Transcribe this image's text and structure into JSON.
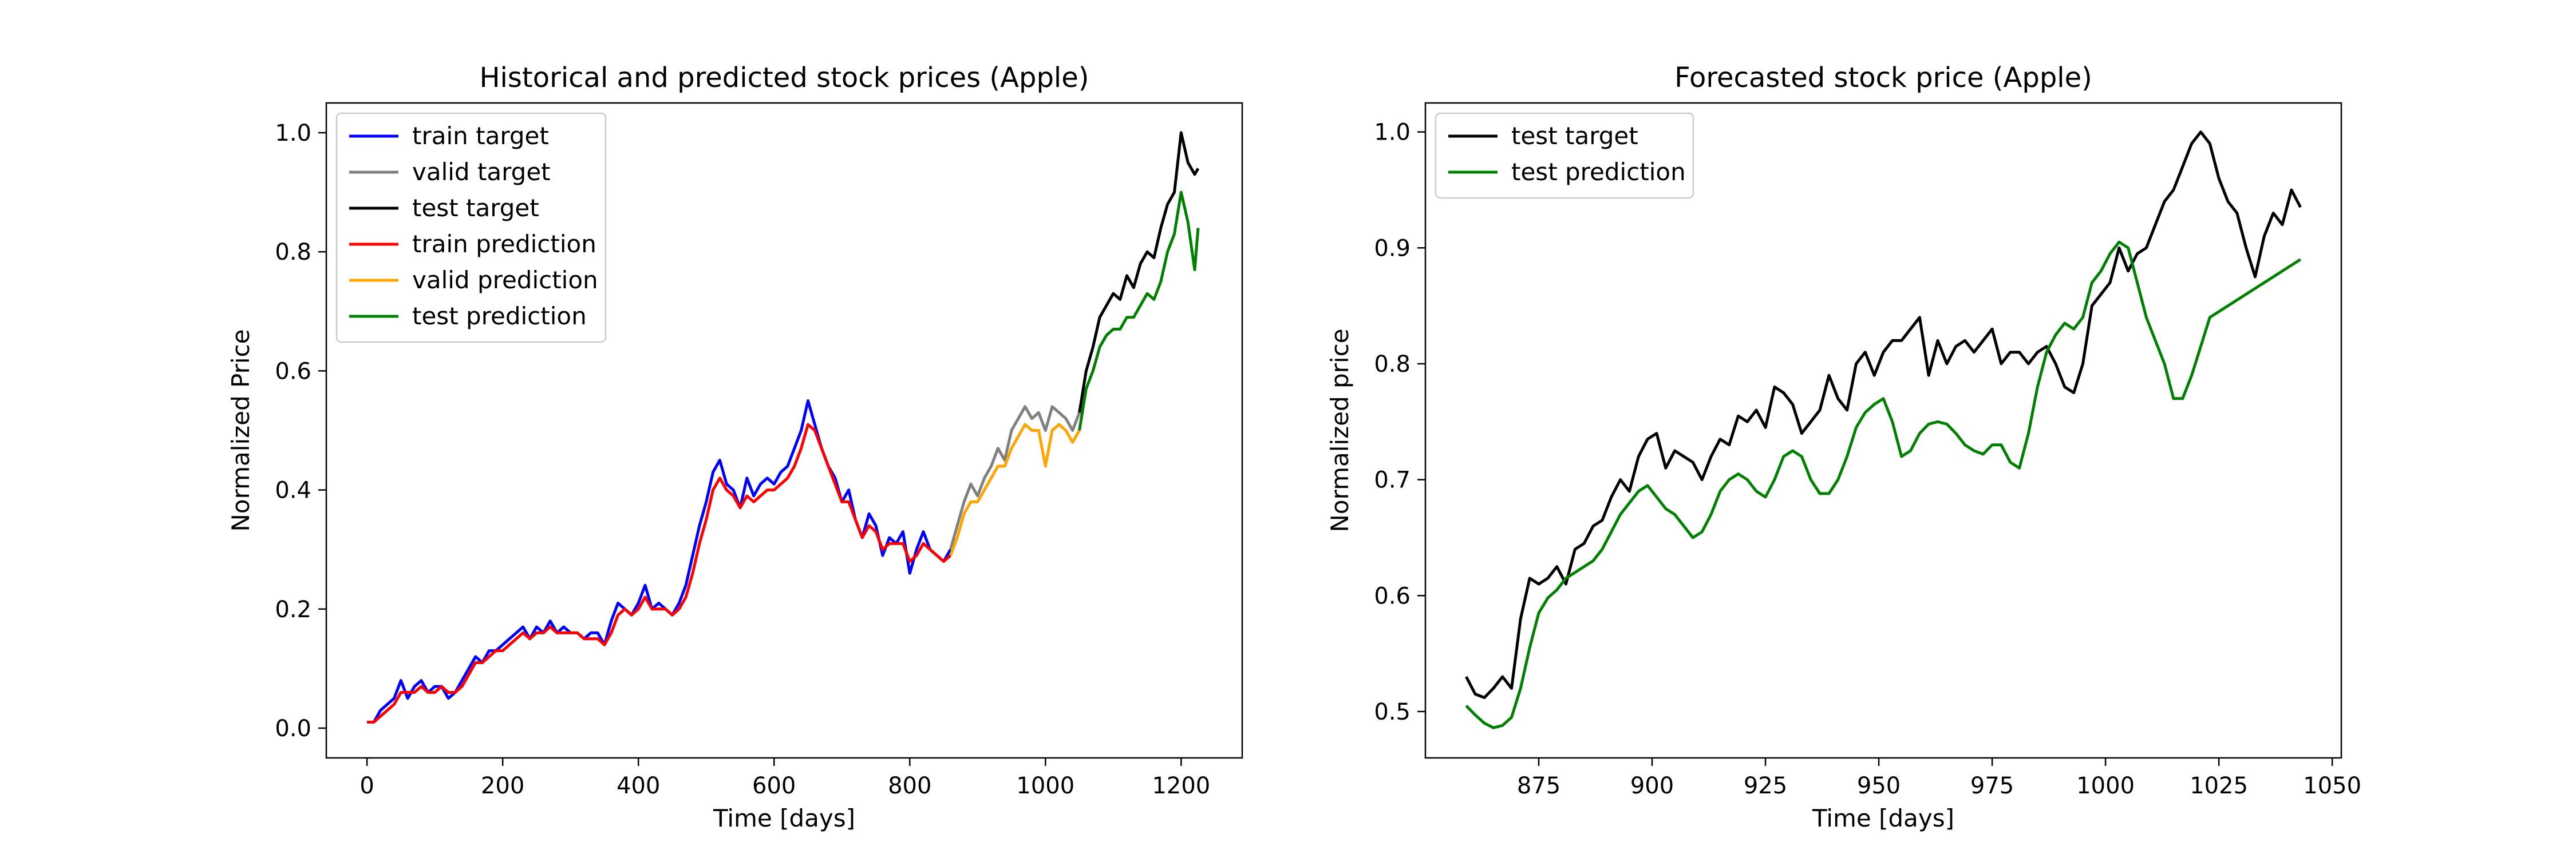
{
  "chart_data": [
    {
      "type": "line",
      "title": "Historical and predicted stock prices (Apple)",
      "xlabel": "Time [days]",
      "ylabel": "Normalized Price",
      "xlim": [
        -60,
        1290
      ],
      "ylim": [
        -0.05,
        1.05
      ],
      "xticks": [
        0,
        200,
        400,
        600,
        800,
        1000,
        1200
      ],
      "yticks": [
        0.0,
        0.2,
        0.4,
        0.6,
        0.8,
        1.0
      ],
      "xtick_labels": [
        "0",
        "200",
        "400",
        "600",
        "800",
        "1000",
        "1200"
      ],
      "ytick_labels": [
        "0.0",
        "0.2",
        "0.4",
        "0.6",
        "0.8",
        "1.0"
      ],
      "grid": false,
      "legend_position": "top-left",
      "series": [
        {
          "name": "train target",
          "color": "#0000ff",
          "x": [
            0,
            10,
            20,
            30,
            40,
            50,
            60,
            70,
            80,
            90,
            100,
            110,
            120,
            130,
            140,
            150,
            160,
            170,
            180,
            190,
            200,
            210,
            220,
            230,
            240,
            250,
            260,
            270,
            280,
            290,
            300,
            310,
            320,
            330,
            340,
            350,
            360,
            370,
            380,
            390,
            400,
            410,
            420,
            430,
            440,
            450,
            460,
            470,
            480,
            490,
            500,
            510,
            520,
            530,
            540,
            550,
            560,
            570,
            580,
            590,
            600,
            610,
            620,
            630,
            640,
            650,
            660,
            670,
            680,
            690,
            700,
            710,
            720,
            730,
            740,
            750,
            760,
            770,
            780,
            790,
            800,
            810,
            820,
            830,
            840,
            850,
            860
          ],
          "y": [
            0.01,
            0.01,
            0.03,
            0.04,
            0.05,
            0.08,
            0.05,
            0.07,
            0.08,
            0.06,
            0.07,
            0.07,
            0.05,
            0.06,
            0.08,
            0.1,
            0.12,
            0.11,
            0.13,
            0.13,
            0.14,
            0.15,
            0.16,
            0.17,
            0.15,
            0.17,
            0.16,
            0.18,
            0.16,
            0.17,
            0.16,
            0.16,
            0.15,
            0.16,
            0.16,
            0.14,
            0.18,
            0.21,
            0.2,
            0.19,
            0.21,
            0.24,
            0.2,
            0.21,
            0.2,
            0.19,
            0.21,
            0.24,
            0.29,
            0.34,
            0.38,
            0.43,
            0.45,
            0.41,
            0.4,
            0.37,
            0.42,
            0.39,
            0.41,
            0.42,
            0.41,
            0.43,
            0.44,
            0.47,
            0.5,
            0.55,
            0.51,
            0.47,
            0.44,
            0.42,
            0.38,
            0.4,
            0.35,
            0.32,
            0.36,
            0.34,
            0.29,
            0.32,
            0.31,
            0.33,
            0.26,
            0.3,
            0.33,
            0.3,
            0.29,
            0.28,
            0.3
          ]
        },
        {
          "name": "valid target",
          "color": "#808080",
          "x": [
            860,
            870,
            880,
            890,
            900,
            910,
            920,
            930,
            940,
            950,
            960,
            970,
            980,
            990,
            1000,
            1010,
            1020,
            1030,
            1040,
            1050
          ],
          "y": [
            0.3,
            0.34,
            0.38,
            0.41,
            0.39,
            0.42,
            0.44,
            0.47,
            0.45,
            0.5,
            0.52,
            0.54,
            0.52,
            0.53,
            0.5,
            0.54,
            0.53,
            0.52,
            0.5,
            0.53
          ]
        },
        {
          "name": "test target",
          "color": "#000000",
          "x": [
            1050,
            1060,
            1070,
            1080,
            1090,
            1100,
            1110,
            1120,
            1130,
            1140,
            1150,
            1160,
            1170,
            1180,
            1190,
            1200,
            1210,
            1220,
            1225
          ],
          "y": [
            0.53,
            0.6,
            0.64,
            0.69,
            0.71,
            0.73,
            0.72,
            0.76,
            0.74,
            0.78,
            0.8,
            0.79,
            0.84,
            0.88,
            0.9,
            1.0,
            0.95,
            0.93,
            0.94
          ]
        },
        {
          "name": "train prediction",
          "color": "#ff0000",
          "x": [
            0,
            10,
            20,
            30,
            40,
            50,
            60,
            70,
            80,
            90,
            100,
            110,
            120,
            130,
            140,
            150,
            160,
            170,
            180,
            190,
            200,
            210,
            220,
            230,
            240,
            250,
            260,
            270,
            280,
            290,
            300,
            310,
            320,
            330,
            340,
            350,
            360,
            370,
            380,
            390,
            400,
            410,
            420,
            430,
            440,
            450,
            460,
            470,
            480,
            490,
            500,
            510,
            520,
            530,
            540,
            550,
            560,
            570,
            580,
            590,
            600,
            610,
            620,
            630,
            640,
            650,
            660,
            670,
            680,
            690,
            700,
            710,
            720,
            730,
            740,
            750,
            760,
            770,
            780,
            790,
            800,
            810,
            820,
            830,
            840,
            850,
            860
          ],
          "y": [
            0.01,
            0.01,
            0.02,
            0.03,
            0.04,
            0.06,
            0.06,
            0.06,
            0.07,
            0.06,
            0.06,
            0.07,
            0.06,
            0.06,
            0.07,
            0.09,
            0.11,
            0.11,
            0.12,
            0.13,
            0.13,
            0.14,
            0.15,
            0.16,
            0.15,
            0.16,
            0.16,
            0.17,
            0.16,
            0.16,
            0.16,
            0.16,
            0.15,
            0.15,
            0.15,
            0.14,
            0.16,
            0.19,
            0.2,
            0.19,
            0.2,
            0.22,
            0.2,
            0.2,
            0.2,
            0.19,
            0.2,
            0.22,
            0.26,
            0.31,
            0.35,
            0.4,
            0.42,
            0.4,
            0.39,
            0.37,
            0.39,
            0.38,
            0.39,
            0.4,
            0.4,
            0.41,
            0.42,
            0.44,
            0.47,
            0.51,
            0.5,
            0.47,
            0.44,
            0.41,
            0.38,
            0.38,
            0.35,
            0.32,
            0.34,
            0.33,
            0.3,
            0.31,
            0.31,
            0.31,
            0.28,
            0.29,
            0.31,
            0.3,
            0.29,
            0.28,
            0.29
          ]
        },
        {
          "name": "valid prediction",
          "color": "#ffa500",
          "x": [
            860,
            870,
            880,
            890,
            900,
            910,
            920,
            930,
            940,
            950,
            960,
            970,
            980,
            990,
            1000,
            1010,
            1020,
            1030,
            1040,
            1050
          ],
          "y": [
            0.29,
            0.32,
            0.36,
            0.38,
            0.38,
            0.4,
            0.42,
            0.44,
            0.44,
            0.47,
            0.49,
            0.51,
            0.5,
            0.5,
            0.44,
            0.5,
            0.51,
            0.5,
            0.48,
            0.5
          ]
        },
        {
          "name": "test prediction",
          "color": "#008000",
          "x": [
            1050,
            1060,
            1070,
            1080,
            1090,
            1100,
            1110,
            1120,
            1130,
            1140,
            1150,
            1160,
            1170,
            1180,
            1190,
            1200,
            1210,
            1220,
            1225
          ],
          "y": [
            0.5,
            0.57,
            0.6,
            0.64,
            0.66,
            0.67,
            0.67,
            0.69,
            0.69,
            0.71,
            0.73,
            0.72,
            0.75,
            0.8,
            0.83,
            0.9,
            0.85,
            0.77,
            0.84
          ]
        }
      ]
    },
    {
      "type": "line",
      "title": "Forecasted stock price (Apple)",
      "xlabel": "Time [days]",
      "ylabel": "Normalized price",
      "xlim": [
        850,
        1052
      ],
      "ylim": [
        0.46,
        1.025
      ],
      "xticks": [
        875,
        900,
        925,
        950,
        975,
        1000,
        1025,
        1050
      ],
      "yticks": [
        0.5,
        0.6,
        0.7,
        0.8,
        0.9,
        1.0
      ],
      "xtick_labels": [
        "875",
        "900",
        "925",
        "950",
        "975",
        "1000",
        "1025",
        "1050"
      ],
      "ytick_labels": [
        "0.5",
        "0.6",
        "0.7",
        "0.8",
        "0.9",
        "1.0"
      ],
      "grid": false,
      "legend_position": "top-left",
      "series": [
        {
          "name": "test target",
          "color": "#000000",
          "x": [
            859,
            861,
            863,
            865,
            867,
            869,
            871,
            873,
            875,
            877,
            879,
            881,
            883,
            885,
            887,
            889,
            891,
            893,
            895,
            897,
            899,
            901,
            903,
            905,
            907,
            909,
            911,
            913,
            915,
            917,
            919,
            921,
            923,
            925,
            927,
            929,
            931,
            933,
            935,
            937,
            939,
            941,
            943,
            945,
            947,
            949,
            951,
            953,
            955,
            957,
            959,
            961,
            963,
            965,
            967,
            969,
            971,
            973,
            975,
            977,
            979,
            981,
            983,
            985,
            987,
            989,
            991,
            993,
            995,
            997,
            999,
            1001,
            1003,
            1005,
            1007,
            1009,
            1011,
            1013,
            1015,
            1017,
            1019,
            1021,
            1023,
            1025,
            1027,
            1029,
            1031,
            1033,
            1035,
            1037,
            1039,
            1041,
            1043
          ],
          "y": [
            0.53,
            0.515,
            0.512,
            0.52,
            0.53,
            0.52,
            0.58,
            0.615,
            0.61,
            0.615,
            0.625,
            0.61,
            0.64,
            0.645,
            0.66,
            0.665,
            0.685,
            0.7,
            0.69,
            0.72,
            0.735,
            0.74,
            0.71,
            0.725,
            0.72,
            0.715,
            0.7,
            0.72,
            0.735,
            0.73,
            0.755,
            0.75,
            0.76,
            0.745,
            0.78,
            0.775,
            0.765,
            0.74,
            0.75,
            0.76,
            0.79,
            0.77,
            0.76,
            0.8,
            0.81,
            0.79,
            0.81,
            0.82,
            0.82,
            0.83,
            0.84,
            0.79,
            0.82,
            0.8,
            0.815,
            0.82,
            0.81,
            0.82,
            0.83,
            0.8,
            0.81,
            0.81,
            0.8,
            0.81,
            0.815,
            0.8,
            0.78,
            0.775,
            0.8,
            0.85,
            0.86,
            0.87,
            0.9,
            0.88,
            0.895,
            0.9,
            0.92,
            0.94,
            0.95,
            0.97,
            0.99,
            1.0,
            0.99,
            0.96,
            0.94,
            0.93,
            0.9,
            0.875,
            0.91,
            0.93,
            0.92,
            0.95,
            0.935
          ]
        },
        {
          "name": "test prediction",
          "color": "#008000",
          "x": [
            859,
            861,
            863,
            865,
            867,
            869,
            871,
            873,
            875,
            877,
            879,
            881,
            883,
            885,
            887,
            889,
            891,
            893,
            895,
            897,
            899,
            901,
            903,
            905,
            907,
            909,
            911,
            913,
            915,
            917,
            919,
            921,
            923,
            925,
            927,
            929,
            931,
            933,
            935,
            937,
            939,
            941,
            943,
            945,
            947,
            949,
            951,
            953,
            955,
            957,
            959,
            961,
            963,
            965,
            967,
            969,
            971,
            973,
            975,
            977,
            979,
            981,
            983,
            985,
            987,
            989,
            991,
            993,
            995,
            997,
            999,
            1001,
            1003,
            1005,
            1007,
            1009,
            1011,
            1013,
            1015,
            1017,
            1019,
            1021,
            1023,
            1025,
            1027,
            1029,
            1031,
            1033,
            1035,
            1037,
            1039,
            1041,
            1043
          ],
          "y": [
            0.505,
            0.497,
            0.49,
            0.486,
            0.488,
            0.495,
            0.52,
            0.555,
            0.585,
            0.598,
            0.605,
            0.615,
            0.62,
            0.625,
            0.63,
            0.64,
            0.655,
            0.67,
            0.68,
            0.69,
            0.695,
            0.685,
            0.675,
            0.67,
            0.66,
            0.65,
            0.655,
            0.67,
            0.69,
            0.7,
            0.705,
            0.7,
            0.69,
            0.685,
            0.7,
            0.72,
            0.725,
            0.72,
            0.7,
            0.688,
            0.688,
            0.7,
            0.72,
            0.745,
            0.758,
            0.765,
            0.77,
            0.75,
            0.72,
            0.725,
            0.74,
            0.748,
            0.75,
            0.748,
            0.74,
            0.73,
            0.725,
            0.722,
            0.73,
            0.73,
            0.715,
            0.71,
            0.74,
            0.78,
            0.81,
            0.825,
            0.835,
            0.83,
            0.84,
            0.87,
            0.88,
            0.895,
            0.905,
            0.9,
            0.87,
            0.84,
            0.82,
            0.8,
            0.77,
            0.77,
            0.79,
            0.815,
            0.84,
            0.845,
            0.85,
            0.855,
            0.86,
            0.865,
            0.87,
            0.875,
            0.88,
            0.885,
            0.89
          ]
        }
      ]
    }
  ]
}
